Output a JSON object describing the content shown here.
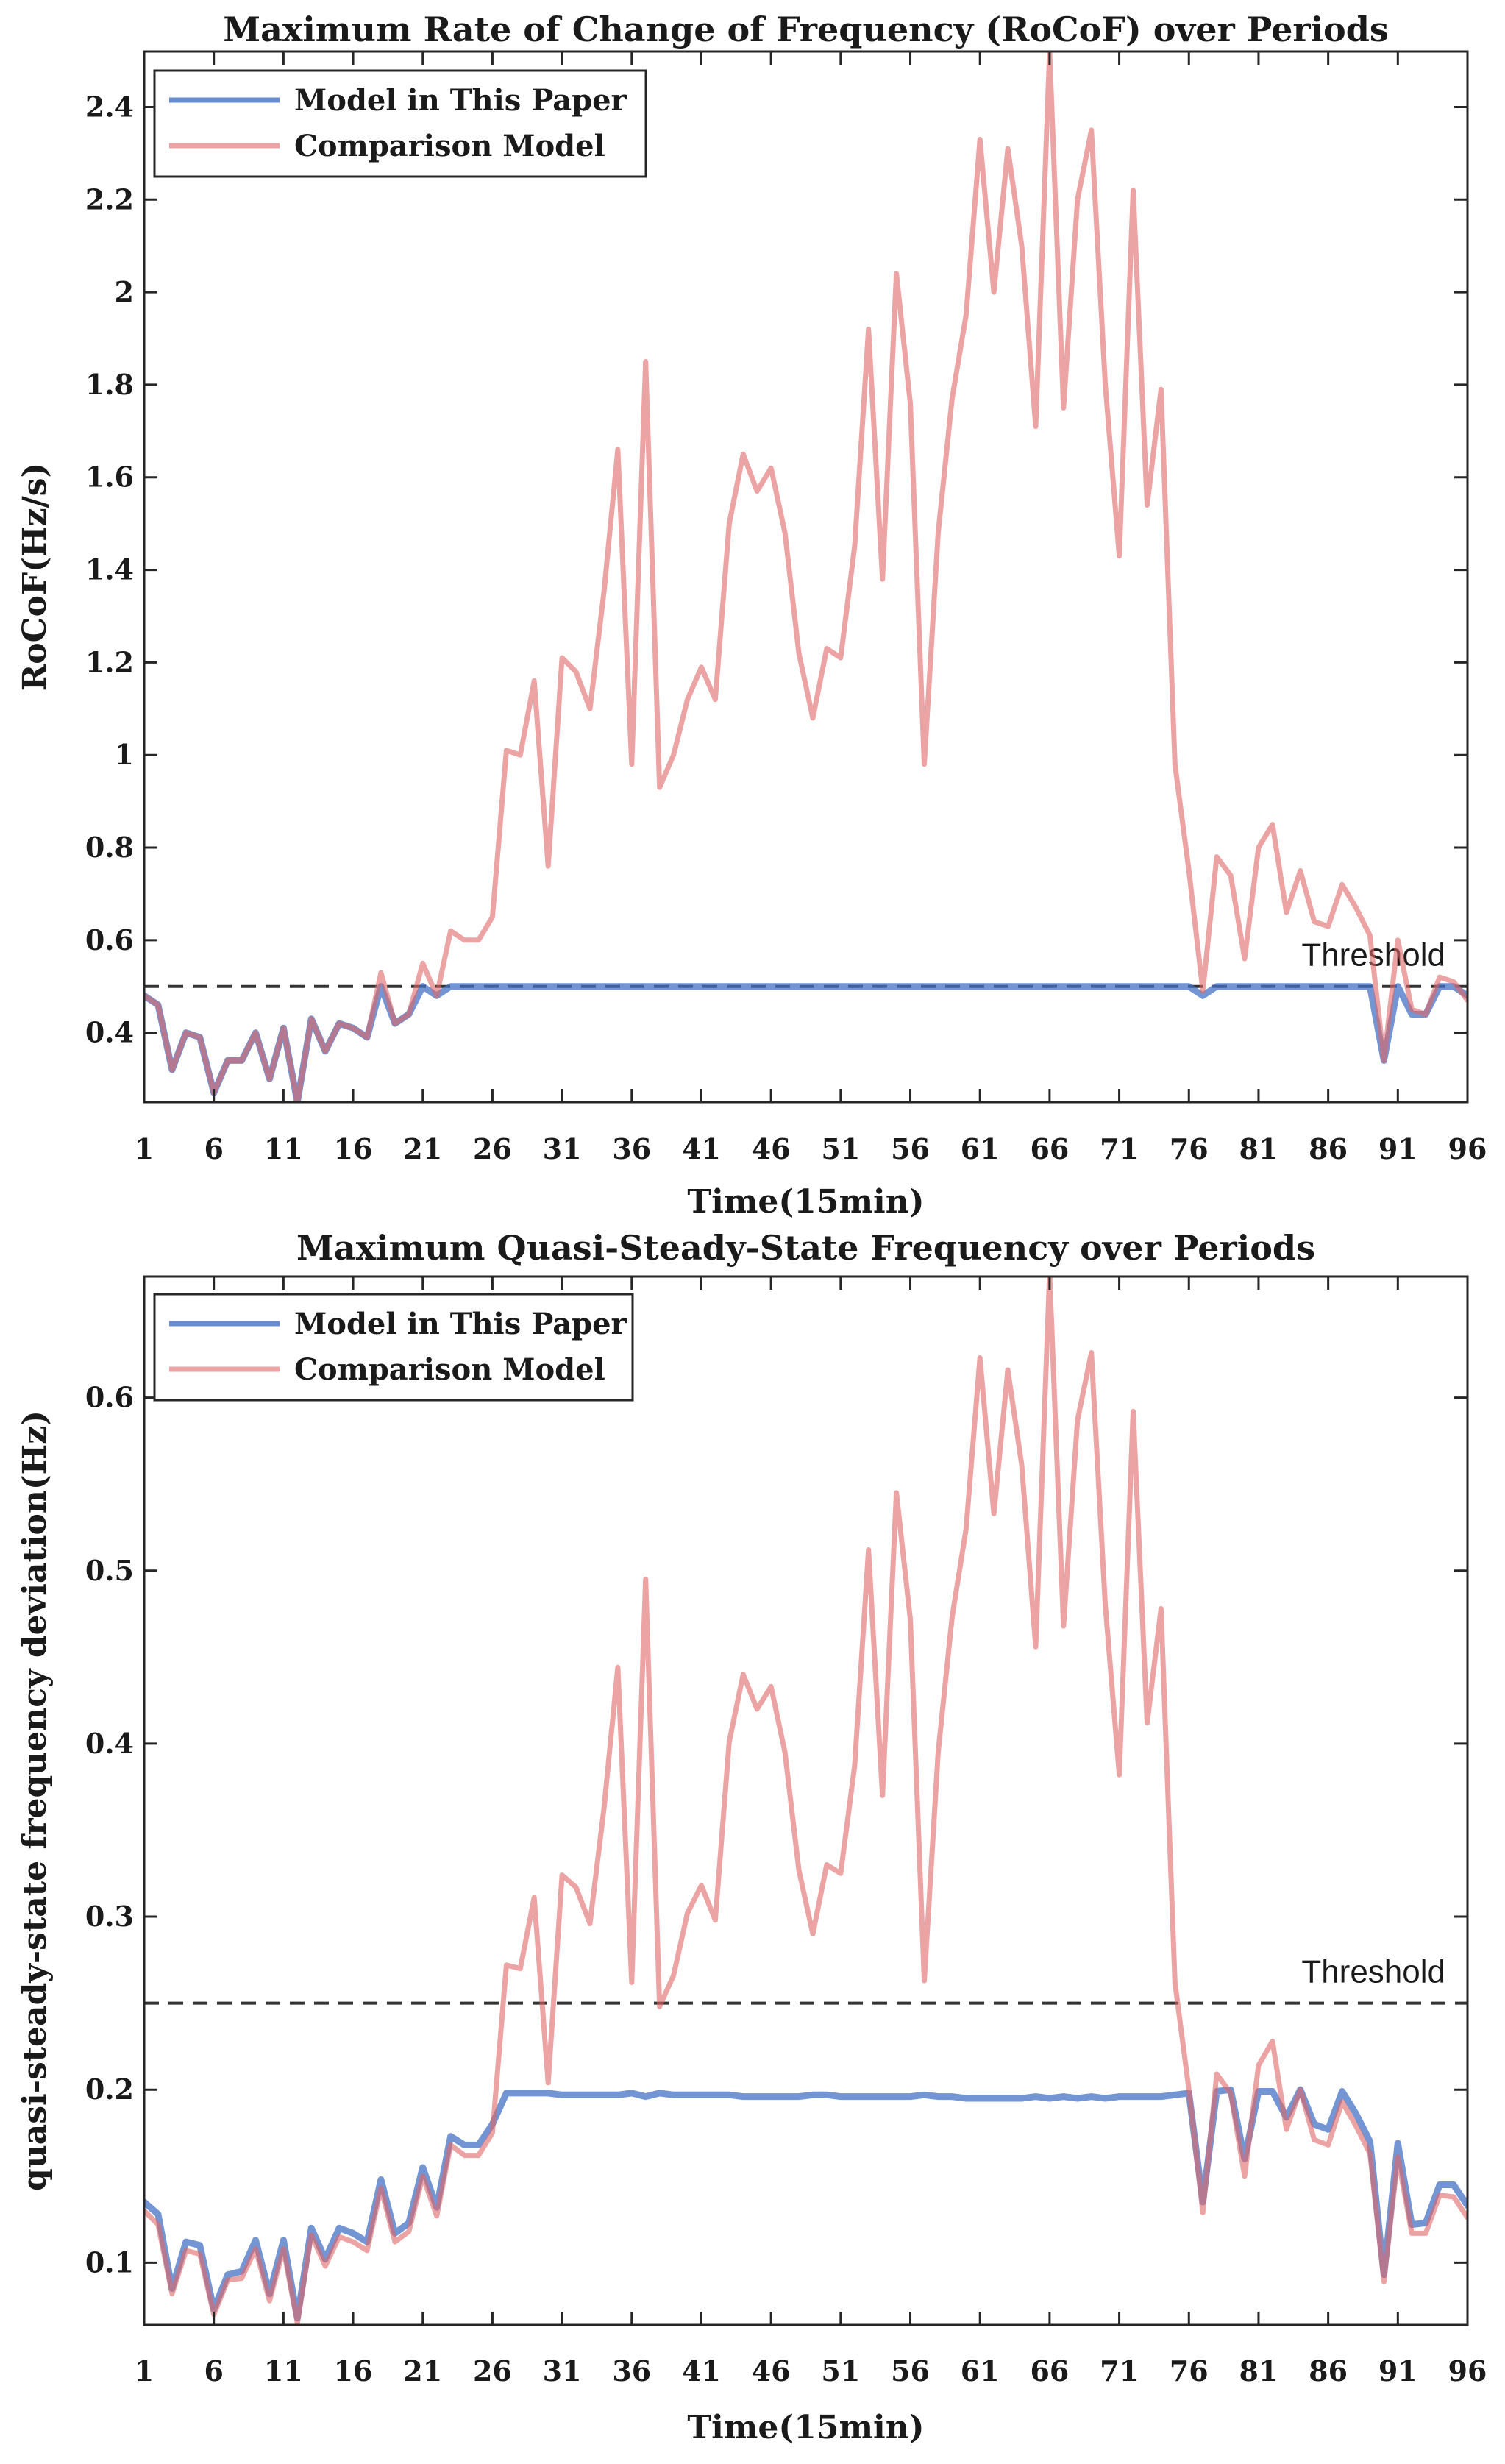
{
  "chart_data": [
    {
      "type": "line",
      "title": "Maximum Rate of Change of Frequency (RoCoF) over Periods",
      "xlabel": "Time(15min)",
      "ylabel": "RoCoF(Hz/s)",
      "xlim": [
        1,
        96
      ],
      "ylim": [
        0.25,
        2.52
      ],
      "xticks": [
        1,
        6,
        11,
        16,
        21,
        26,
        31,
        36,
        41,
        46,
        51,
        56,
        61,
        66,
        71,
        76,
        81,
        86,
        91,
        96
      ],
      "yticks": [
        0.4,
        0.6,
        0.8,
        1,
        1.2,
        1.4,
        1.6,
        1.8,
        2,
        2.2,
        2.4
      ],
      "ytick_labels": [
        "0.4",
        "0.6",
        "0.8",
        "1",
        "1.2",
        "1.4",
        "1.6",
        "1.8",
        "2",
        "2.2",
        "2.4"
      ],
      "grid": false,
      "legend_position": "top-left",
      "threshold": {
        "value": 0.5,
        "label": "Threshold"
      },
      "series": [
        {
          "name": "Model in This Paper",
          "color": "#4472C4",
          "values": [
            0.48,
            0.46,
            0.32,
            0.4,
            0.39,
            0.27,
            0.34,
            0.34,
            0.4,
            0.3,
            0.41,
            0.25,
            0.43,
            0.36,
            0.42,
            0.41,
            0.39,
            0.5,
            0.42,
            0.44,
            0.5,
            0.48,
            0.5,
            0.5,
            0.5,
            0.5,
            0.5,
            0.5,
            0.5,
            0.5,
            0.5,
            0.5,
            0.5,
            0.5,
            0.5,
            0.5,
            0.5,
            0.5,
            0.5,
            0.5,
            0.5,
            0.5,
            0.5,
            0.5,
            0.5,
            0.5,
            0.5,
            0.5,
            0.5,
            0.5,
            0.5,
            0.5,
            0.5,
            0.5,
            0.5,
            0.5,
            0.5,
            0.5,
            0.5,
            0.5,
            0.5,
            0.5,
            0.5,
            0.5,
            0.5,
            0.5,
            0.5,
            0.5,
            0.5,
            0.5,
            0.5,
            0.5,
            0.5,
            0.5,
            0.5,
            0.5,
            0.48,
            0.5,
            0.5,
            0.5,
            0.5,
            0.5,
            0.5,
            0.5,
            0.5,
            0.5,
            0.5,
            0.5,
            0.5,
            0.34,
            0.5,
            0.44,
            0.44,
            0.5,
            0.5,
            0.48
          ]
        },
        {
          "name": "Comparison Model",
          "color": "#E06666",
          "values": [
            0.48,
            0.46,
            0.32,
            0.4,
            0.39,
            0.27,
            0.34,
            0.34,
            0.4,
            0.3,
            0.41,
            0.25,
            0.43,
            0.36,
            0.42,
            0.41,
            0.39,
            0.53,
            0.42,
            0.44,
            0.55,
            0.48,
            0.62,
            0.6,
            0.6,
            0.65,
            1.01,
            1.0,
            1.16,
            0.76,
            1.21,
            1.18,
            1.1,
            1.35,
            1.66,
            0.98,
            1.85,
            0.93,
            1.0,
            1.12,
            1.19,
            1.12,
            1.5,
            1.65,
            1.57,
            1.62,
            1.48,
            1.22,
            1.08,
            1.23,
            1.21,
            1.45,
            1.92,
            1.38,
            2.04,
            1.76,
            0.98,
            1.48,
            1.77,
            1.95,
            2.33,
            2.0,
            2.31,
            2.1,
            1.71,
            2.52,
            1.75,
            2.2,
            2.35,
            1.8,
            1.43,
            2.22,
            1.54,
            1.79,
            0.98,
            0.75,
            0.49,
            0.78,
            0.74,
            0.56,
            0.8,
            0.85,
            0.66,
            0.75,
            0.64,
            0.63,
            0.72,
            0.67,
            0.61,
            0.34,
            0.6,
            0.45,
            0.44,
            0.52,
            0.51,
            0.47
          ]
        }
      ]
    },
    {
      "type": "line",
      "title": "Maximum Quasi-Steady-State Frequency over Periods",
      "xlabel": "Time(15min)",
      "ylabel": "quasi-steady-state frequency deviation(Hz)",
      "xlim": [
        1,
        96
      ],
      "ylim": [
        0.064,
        0.67
      ],
      "xticks": [
        1,
        6,
        11,
        16,
        21,
        26,
        31,
        36,
        41,
        46,
        51,
        56,
        61,
        66,
        71,
        76,
        81,
        86,
        91,
        96
      ],
      "yticks": [
        0.1,
        0.2,
        0.3,
        0.4,
        0.5,
        0.6
      ],
      "ytick_labels": [
        "0.1",
        "0.2",
        "0.3",
        "0.4",
        "0.5",
        "0.6"
      ],
      "grid": false,
      "legend_position": "top-left",
      "threshold": {
        "value": 0.25,
        "label": "Threshold"
      },
      "series": [
        {
          "name": "Model in This Paper",
          "color": "#4472C4",
          "values": [
            0.135,
            0.128,
            0.085,
            0.112,
            0.11,
            0.073,
            0.093,
            0.095,
            0.113,
            0.082,
            0.113,
            0.068,
            0.12,
            0.102,
            0.12,
            0.117,
            0.112,
            0.148,
            0.117,
            0.123,
            0.155,
            0.132,
            0.173,
            0.168,
            0.168,
            0.18,
            0.198,
            0.198,
            0.198,
            0.198,
            0.197,
            0.197,
            0.197,
            0.197,
            0.197,
            0.198,
            0.196,
            0.198,
            0.197,
            0.197,
            0.197,
            0.197,
            0.197,
            0.196,
            0.196,
            0.196,
            0.196,
            0.196,
            0.197,
            0.197,
            0.196,
            0.196,
            0.196,
            0.196,
            0.196,
            0.196,
            0.197,
            0.196,
            0.196,
            0.195,
            0.195,
            0.195,
            0.195,
            0.195,
            0.196,
            0.195,
            0.196,
            0.195,
            0.196,
            0.195,
            0.196,
            0.196,
            0.196,
            0.196,
            0.197,
            0.198,
            0.135,
            0.199,
            0.2,
            0.16,
            0.199,
            0.199,
            0.184,
            0.2,
            0.18,
            0.177,
            0.199,
            0.186,
            0.17,
            0.093,
            0.169,
            0.122,
            0.123,
            0.145,
            0.145,
            0.133
          ]
        },
        {
          "name": "Comparison Model",
          "color": "#E06666",
          "values": [
            0.13,
            0.122,
            0.082,
            0.107,
            0.105,
            0.07,
            0.09,
            0.091,
            0.108,
            0.078,
            0.108,
            0.065,
            0.116,
            0.098,
            0.115,
            0.112,
            0.107,
            0.143,
            0.112,
            0.118,
            0.15,
            0.127,
            0.168,
            0.162,
            0.162,
            0.175,
            0.272,
            0.27,
            0.311,
            0.204,
            0.324,
            0.317,
            0.296,
            0.362,
            0.444,
            0.262,
            0.495,
            0.248,
            0.266,
            0.302,
            0.318,
            0.298,
            0.401,
            0.44,
            0.42,
            0.433,
            0.395,
            0.327,
            0.29,
            0.33,
            0.325,
            0.387,
            0.512,
            0.37,
            0.545,
            0.472,
            0.263,
            0.395,
            0.473,
            0.524,
            0.623,
            0.533,
            0.616,
            0.561,
            0.456,
            0.672,
            0.468,
            0.587,
            0.626,
            0.48,
            0.382,
            0.592,
            0.412,
            0.478,
            0.262,
            0.2,
            0.129,
            0.209,
            0.198,
            0.15,
            0.214,
            0.228,
            0.177,
            0.2,
            0.171,
            0.168,
            0.193,
            0.179,
            0.163,
            0.089,
            0.161,
            0.117,
            0.117,
            0.139,
            0.138,
            0.126
          ]
        }
      ]
    }
  ]
}
